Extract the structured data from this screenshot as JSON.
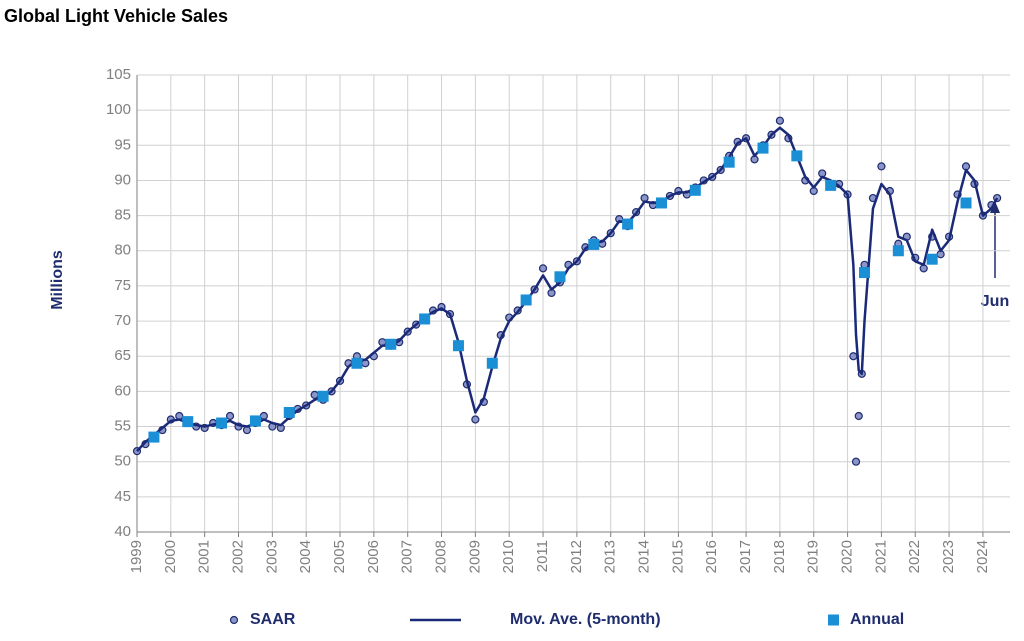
{
  "chart_data": {
    "type": "line",
    "title": "Global Light Vehicle Sales",
    "y_label": "Millions",
    "annotation": "Jun",
    "grid": true,
    "xlim": [
      1999,
      2024.8
    ],
    "xticks": [
      1999,
      2000,
      2001,
      2002,
      2003,
      2004,
      2005,
      2006,
      2007,
      2008,
      2009,
      2010,
      2011,
      2012,
      2013,
      2014,
      2015,
      2016,
      2017,
      2018,
      2019,
      2020,
      2021,
      2022,
      2023,
      2024
    ],
    "ylim": [
      40,
      105
    ],
    "yticks": [
      40,
      45,
      50,
      55,
      60,
      65,
      70,
      75,
      80,
      85,
      90,
      95,
      100,
      105
    ],
    "x": [
      1999,
      1999.25,
      1999.5,
      1999.75,
      2000,
      2000.25,
      2000.5,
      2000.75,
      2001,
      2001.25,
      2001.5,
      2001.75,
      2002,
      2002.25,
      2002.5,
      2002.75,
      2003,
      2003.25,
      2003.5,
      2003.75,
      2004,
      2004.25,
      2004.5,
      2004.75,
      2005,
      2005.25,
      2005.5,
      2005.75,
      2006,
      2006.25,
      2006.5,
      2006.75,
      2007,
      2007.25,
      2007.5,
      2007.75,
      2008,
      2008.25,
      2008.5,
      2008.75,
      2009,
      2009.25,
      2009.5,
      2009.75,
      2010,
      2010.25,
      2010.5,
      2010.75,
      2011,
      2011.25,
      2011.5,
      2011.75,
      2012,
      2012.25,
      2012.5,
      2012.75,
      2013,
      2013.25,
      2013.5,
      2013.75,
      2014,
      2014.25,
      2014.5,
      2014.75,
      2015,
      2015.25,
      2015.5,
      2015.75,
      2016,
      2016.25,
      2016.5,
      2016.75,
      2017,
      2017.25,
      2017.5,
      2017.75,
      2018,
      2018.25,
      2018.5,
      2018.75,
      2019,
      2019.25,
      2019.5,
      2019.75,
      2020,
      2020.17,
      2020.25,
      2020.33,
      2020.42,
      2020.5,
      2020.75,
      2021,
      2021.25,
      2021.5,
      2021.75,
      2022,
      2022.25,
      2022.5,
      2022.75,
      2023,
      2023.25,
      2023.5,
      2023.75,
      2024,
      2024.25,
      2024.42
    ],
    "series": [
      {
        "name": "SAAR",
        "style": "points",
        "color": "#8b95c9",
        "stroke": "#1f2d6e",
        "values": [
          51.5,
          52.5,
          53.5,
          54.5,
          56,
          56.5,
          55.5,
          55,
          54.8,
          55.5,
          55.2,
          56.5,
          55,
          54.5,
          55.5,
          56.5,
          55,
          54.8,
          56.5,
          57.5,
          58,
          59.5,
          58.8,
          60,
          61.5,
          64,
          65,
          64,
          65,
          67,
          66.5,
          67,
          68.5,
          69.5,
          70.5,
          71.5,
          72,
          71,
          66.5,
          61,
          56,
          58.5,
          64,
          68,
          70.5,
          71.5,
          73,
          74.5,
          77.5,
          74,
          75.5,
          78,
          78.5,
          80.5,
          81.5,
          81,
          82.5,
          84.5,
          83.5,
          85.5,
          87.5,
          86.5,
          87,
          87.8,
          88.5,
          88,
          89,
          90,
          90.5,
          91.5,
          93.5,
          95.5,
          96,
          93,
          95,
          96.5,
          98.5,
          96,
          93.5,
          90,
          88.5,
          91,
          89.5,
          89.5,
          88,
          65,
          50,
          56.5,
          62.5,
          78,
          87.5,
          92,
          88.5,
          81,
          82,
          79,
          77.5,
          82,
          79.5,
          82,
          88,
          92,
          89.5,
          85,
          86.5,
          87.5
        ]
      },
      {
        "name": "Mov. Ave. (5-month)",
        "style": "line",
        "color": "#1b2a78",
        "values": [
          51.5,
          52.8,
          53.8,
          54.8,
          55.8,
          56,
          55.5,
          55.2,
          55,
          55.3,
          55.5,
          55.8,
          55.2,
          55,
          55.4,
          56,
          55.5,
          55.2,
          56.3,
          57.3,
          58,
          58.8,
          59.2,
          60,
          61.5,
          63.5,
          64.5,
          64.5,
          65.5,
          66.5,
          66.5,
          67.2,
          68.5,
          69.5,
          70.5,
          71.3,
          71.8,
          71,
          67,
          61.5,
          57,
          59,
          63.5,
          67.5,
          70,
          71.3,
          72.8,
          74.5,
          76.5,
          74.5,
          75.5,
          77.5,
          78.5,
          80.3,
          81.2,
          81.3,
          82.5,
          84.2,
          84,
          85.3,
          87,
          86.8,
          87,
          87.8,
          88.3,
          88.3,
          89,
          89.8,
          90.5,
          91.5,
          93.3,
          95.3,
          96,
          93.5,
          94.8,
          96.5,
          97.5,
          96.5,
          93.5,
          90.5,
          89,
          90.5,
          90,
          89.2,
          88,
          78,
          68,
          63,
          62.5,
          70,
          86,
          89.5,
          88,
          82,
          81.5,
          78.5,
          78,
          83,
          80,
          81.5,
          87,
          91.5,
          90,
          85,
          86,
          87.5
        ]
      },
      {
        "name": "Annual",
        "style": "squares",
        "color": "#1a8fd6",
        "x": [
          1999.5,
          2000.5,
          2001.5,
          2002.5,
          2003.5,
          2004.5,
          2005.5,
          2006.5,
          2007.5,
          2008.5,
          2009.5,
          2010.5,
          2011.5,
          2012.5,
          2013.5,
          2014.5,
          2015.5,
          2016.5,
          2017.5,
          2018.5,
          2019.5,
          2020.5,
          2021.5,
          2022.5,
          2023.5
        ],
        "values": [
          53.5,
          55.7,
          55.5,
          55.8,
          57,
          59.3,
          64,
          66.7,
          70.3,
          66.5,
          64,
          73,
          76.3,
          80.9,
          83.8,
          86.8,
          88.6,
          92.6,
          94.6,
          93.5,
          89.3,
          76.9,
          80,
          78.8,
          86.8
        ]
      }
    ]
  }
}
